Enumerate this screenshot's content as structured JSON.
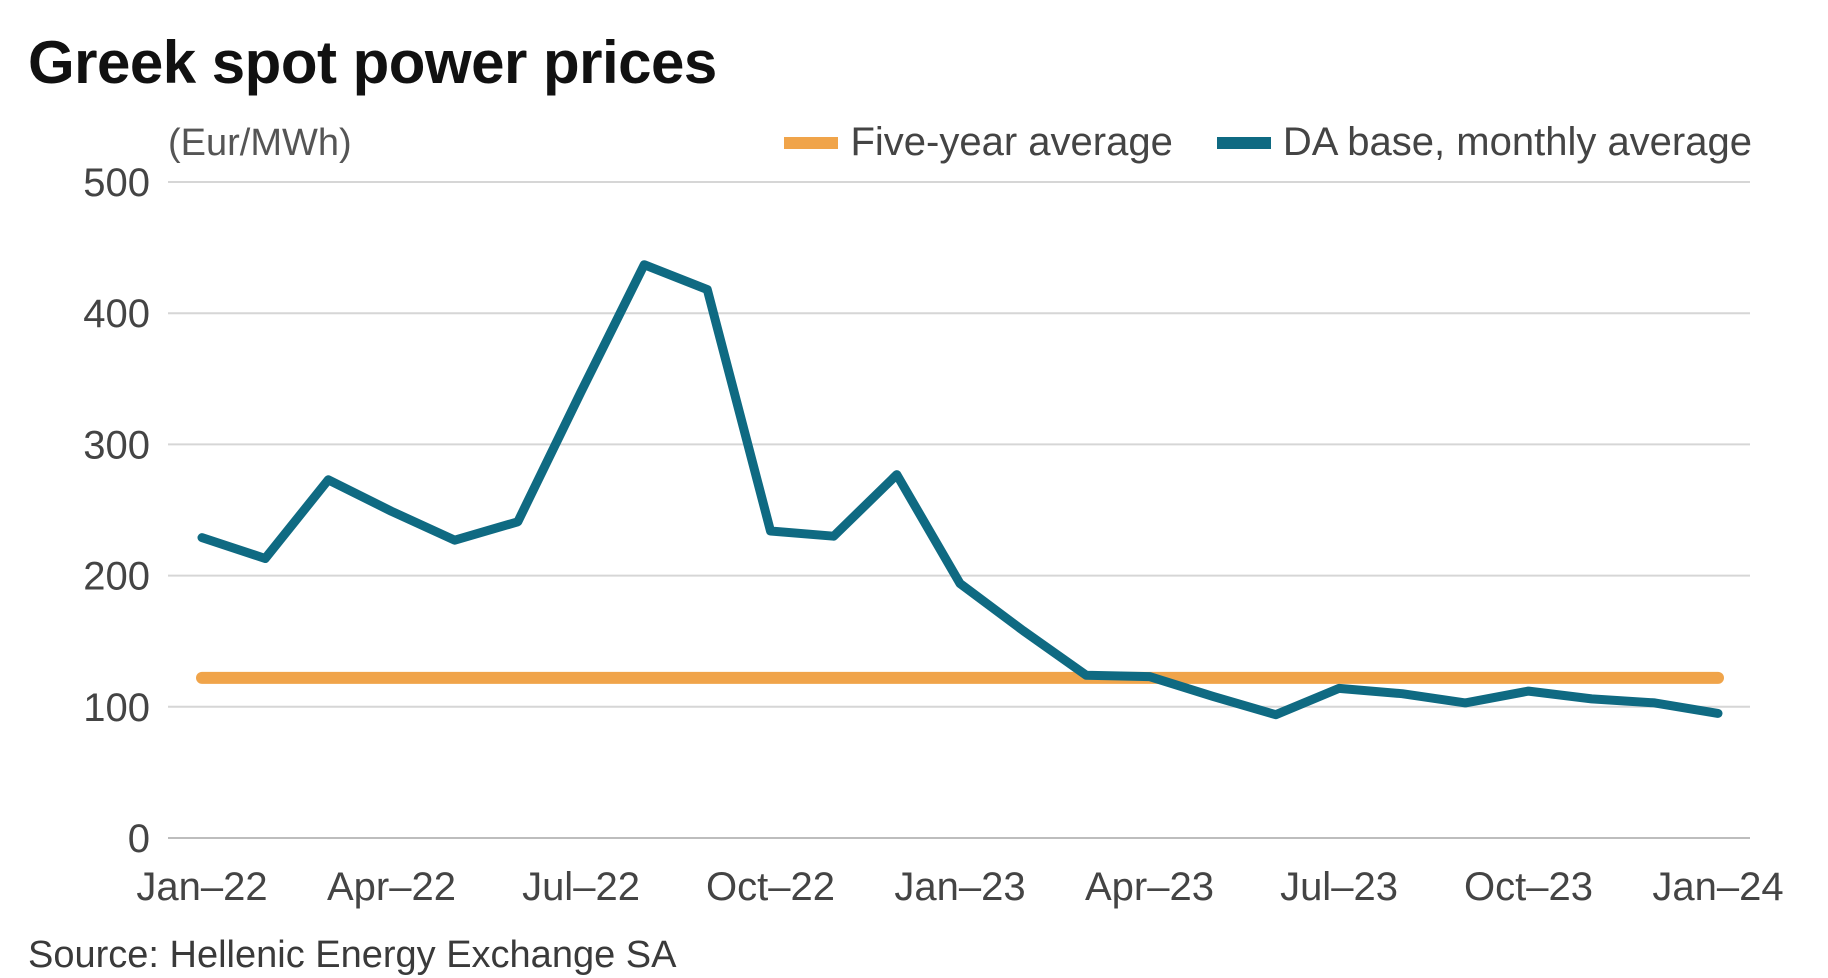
{
  "chart_data": {
    "type": "line",
    "title": "Greek spot power prices",
    "unit_label": "(Eur/MWh)",
    "source": "Source: Hellenic Energy Exchange SA",
    "xlabel": "",
    "ylabel": "",
    "ylim": [
      0,
      500
    ],
    "yticks": [
      "0",
      "100",
      "200",
      "300",
      "400",
      "500"
    ],
    "grid": true,
    "legend_position": "top-right",
    "x": [
      "Jan-22",
      "Feb-22",
      "Mar-22",
      "Apr-22",
      "May-22",
      "Jun-22",
      "Jul-22",
      "Aug-22",
      "Sep-22",
      "Oct-22",
      "Nov-22",
      "Dec-22",
      "Jan-23",
      "Feb-23",
      "Mar-23",
      "Apr-23",
      "May-23",
      "Jun-23",
      "Jul-23",
      "Aug-23",
      "Sep-23",
      "Oct-23",
      "Nov-23",
      "Dec-23",
      "Jan-24"
    ],
    "xtick_labels": [
      "Jan–22",
      "Apr–22",
      "Jul–22",
      "Oct–22",
      "Jan–23",
      "Apr–23",
      "Jul–23",
      "Oct–23",
      "Jan–24"
    ],
    "xtick_indices": [
      0,
      3,
      6,
      9,
      12,
      15,
      18,
      21,
      24
    ],
    "series": [
      {
        "name": "Five-year average",
        "color": "#f0a44a",
        "values": [
          122,
          122,
          122,
          122,
          122,
          122,
          122,
          122,
          122,
          122,
          122,
          122,
          122,
          122,
          122,
          122,
          122,
          122,
          122,
          122,
          122,
          122,
          122,
          122,
          122
        ]
      },
      {
        "name": "DA base, monthly average",
        "color": "#0f6a82",
        "values": [
          229,
          213,
          273,
          249,
          227,
          241,
          340,
          437,
          418,
          234,
          230,
          277,
          194,
          158,
          124,
          123,
          108,
          94,
          114,
          110,
          103,
          112,
          106,
          103,
          95
        ]
      }
    ]
  }
}
